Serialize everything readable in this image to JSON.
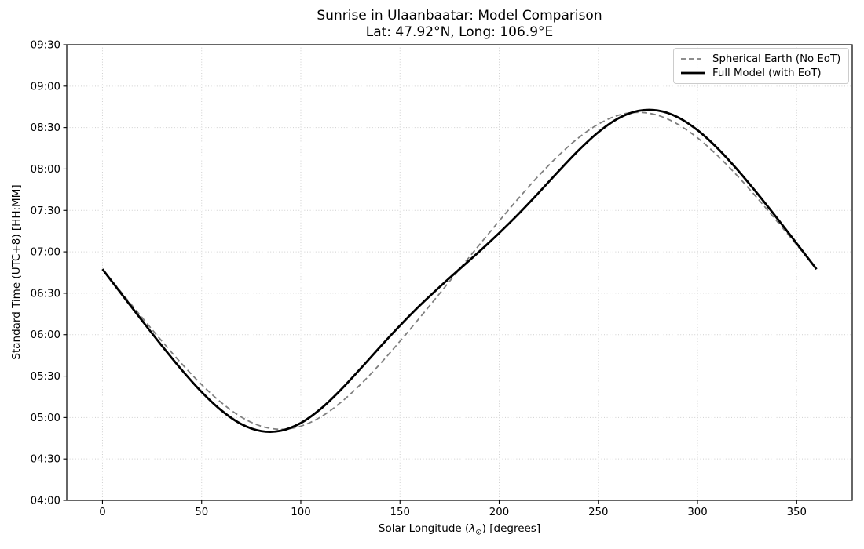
{
  "header": {
    "title": "Sunrise in Ulaanbaatar: Model Comparison",
    "subtitle": "Lat: 47.92°N, Long: 106.9°E"
  },
  "chart_data": {
    "type": "line",
    "title": "Sunrise in Ulaanbaatar: Model Comparison",
    "subtitle": "Lat: 47.92°N, Long: 106.9°E",
    "xlabel_text": "Solar Longitude (λ⊙) [degrees]",
    "xlabel_parts": {
      "prefix": "Solar Longitude (",
      "lambda": "λ",
      "sun": "⊙",
      "suffix": ") [degrees]"
    },
    "ylabel": "Standard Time (UTC+8) [HH:MM]",
    "xlim": [
      -18,
      378
    ],
    "ylim": [
      4.0,
      9.5
    ],
    "x_ticks": [
      0,
      50,
      100,
      150,
      200,
      250,
      300,
      350
    ],
    "y_ticks": [
      {
        "value": 4.0,
        "label": "04:00"
      },
      {
        "value": 4.5,
        "label": "04:30"
      },
      {
        "value": 5.0,
        "label": "05:00"
      },
      {
        "value": 5.5,
        "label": "05:30"
      },
      {
        "value": 6.0,
        "label": "06:00"
      },
      {
        "value": 6.5,
        "label": "06:30"
      },
      {
        "value": 7.0,
        "label": "07:00"
      },
      {
        "value": 7.5,
        "label": "07:30"
      },
      {
        "value": 8.0,
        "label": "08:00"
      },
      {
        "value": 8.5,
        "label": "08:30"
      },
      {
        "value": 9.0,
        "label": "09:00"
      },
      {
        "value": 9.5,
        "label": "09:30"
      }
    ],
    "grid": {
      "visible": true,
      "style": "dotted",
      "color": "#cfcfcf"
    },
    "legend": {
      "position": "upper right",
      "border_color": "#cccccc"
    },
    "y_unit": "hours, decimal (UTC+8)",
    "x": [
      0,
      10,
      20,
      30,
      40,
      50,
      60,
      70,
      80,
      90,
      100,
      110,
      120,
      130,
      140,
      150,
      160,
      170,
      180,
      190,
      200,
      210,
      220,
      230,
      240,
      250,
      260,
      270,
      280,
      290,
      300,
      310,
      320,
      330,
      340,
      350,
      360
    ],
    "series": [
      {
        "name": "Spherical Earth (No EoT)",
        "color": "#7f7f7f",
        "line_style": "dashed",
        "line_width": 1.8,
        "values": [
          6.791,
          6.497,
          6.206,
          5.921,
          5.648,
          5.397,
          5.179,
          5.006,
          4.896,
          4.858,
          4.896,
          5.006,
          5.179,
          5.397,
          5.648,
          5.921,
          6.206,
          6.497,
          6.791,
          7.084,
          7.372,
          7.653,
          7.92,
          8.164,
          8.376,
          8.541,
          8.648,
          8.684,
          8.648,
          8.541,
          8.376,
          8.164,
          7.92,
          7.653,
          7.372,
          7.084,
          6.791
        ]
      },
      {
        "name": "Full Model (with EoT)",
        "color": "#000000",
        "line_style": "solid",
        "line_width": 2.8,
        "values": [
          6.791,
          6.479,
          6.169,
          5.865,
          5.574,
          5.308,
          5.085,
          4.921,
          4.837,
          4.841,
          4.934,
          5.104,
          5.33,
          5.587,
          5.853,
          6.11,
          6.352,
          6.576,
          6.791,
          7.004,
          7.227,
          7.463,
          7.715,
          7.974,
          8.224,
          8.444,
          8.61,
          8.701,
          8.706,
          8.626,
          8.469,
          8.253,
          7.994,
          7.709,
          7.409,
          7.101,
          6.791
        ]
      }
    ]
  }
}
